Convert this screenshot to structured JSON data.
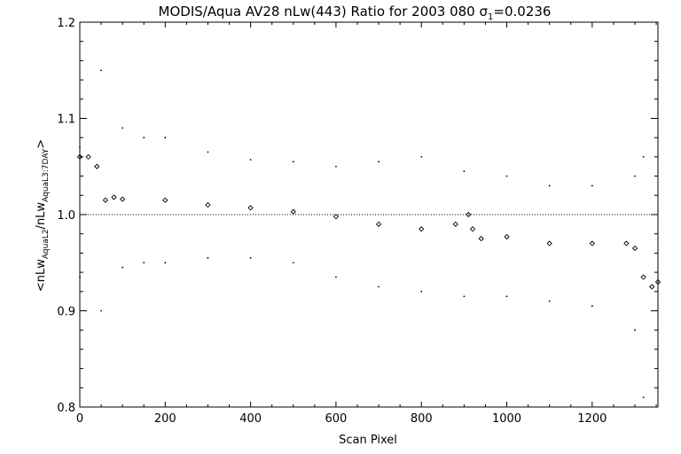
{
  "chart_data": {
    "type": "scatter",
    "title": {
      "main": "MODIS/Aqua AV28 nLw(443) Ratio for 2003 080 ",
      "sigma": "σ",
      "sigma_sub": "1",
      "value": "=0.0236"
    },
    "xlabel": "Scan Pixel",
    "ylabel": {
      "open": "<nLw",
      "sub1": "AquaL2",
      "mid": "/nLw",
      "sub2": "AquaL3:7DAY",
      "close": ">"
    },
    "xlim": [
      0,
      1354
    ],
    "ylim": [
      0.8,
      1.2
    ],
    "xticks": [
      "0",
      "200",
      "400",
      "600",
      "800",
      "1000",
      "1200"
    ],
    "yticks": [
      "0.8",
      "0.9",
      "1.0",
      "1.1",
      "1.2"
    ],
    "reference_line": 1.0,
    "grid": false,
    "series": [
      {
        "marker": "diamond",
        "x": [
          0,
          20,
          40,
          60,
          80,
          100,
          200,
          300,
          400,
          500,
          600,
          700,
          800,
          880,
          910,
          920,
          940,
          1000,
          1100,
          1200,
          1280,
          1300,
          1320,
          1340,
          1354
        ],
        "y": [
          1.06,
          1.06,
          1.05,
          1.015,
          1.018,
          1.016,
          1.015,
          1.01,
          1.007,
          1.003,
          0.998,
          0.99,
          0.985,
          0.99,
          1.0,
          0.985,
          0.975,
          0.977,
          0.97,
          0.97,
          0.97,
          0.965,
          0.935,
          0.925,
          0.93
        ]
      },
      {
        "marker": "dot",
        "x": [
          0,
          50,
          100,
          150,
          200,
          300,
          400,
          500,
          600,
          700,
          800,
          900,
          1000,
          1100,
          1200,
          1300,
          1320
        ],
        "y": [
          1.07,
          1.15,
          1.09,
          1.08,
          1.08,
          1.065,
          1.057,
          1.055,
          1.05,
          1.055,
          1.06,
          1.045,
          1.04,
          1.03,
          1.03,
          1.04,
          1.06
        ]
      },
      {
        "marker": "dot",
        "x": [
          0,
          50,
          100,
          150,
          200,
          300,
          400,
          500,
          600,
          700,
          800,
          900,
          1000,
          1100,
          1200,
          1300,
          1320
        ],
        "y": [
          0.935,
          0.9,
          0.945,
          0.95,
          0.95,
          0.955,
          0.955,
          0.95,
          0.935,
          0.925,
          0.92,
          0.915,
          0.915,
          0.91,
          0.905,
          0.88,
          0.81
        ]
      }
    ]
  }
}
